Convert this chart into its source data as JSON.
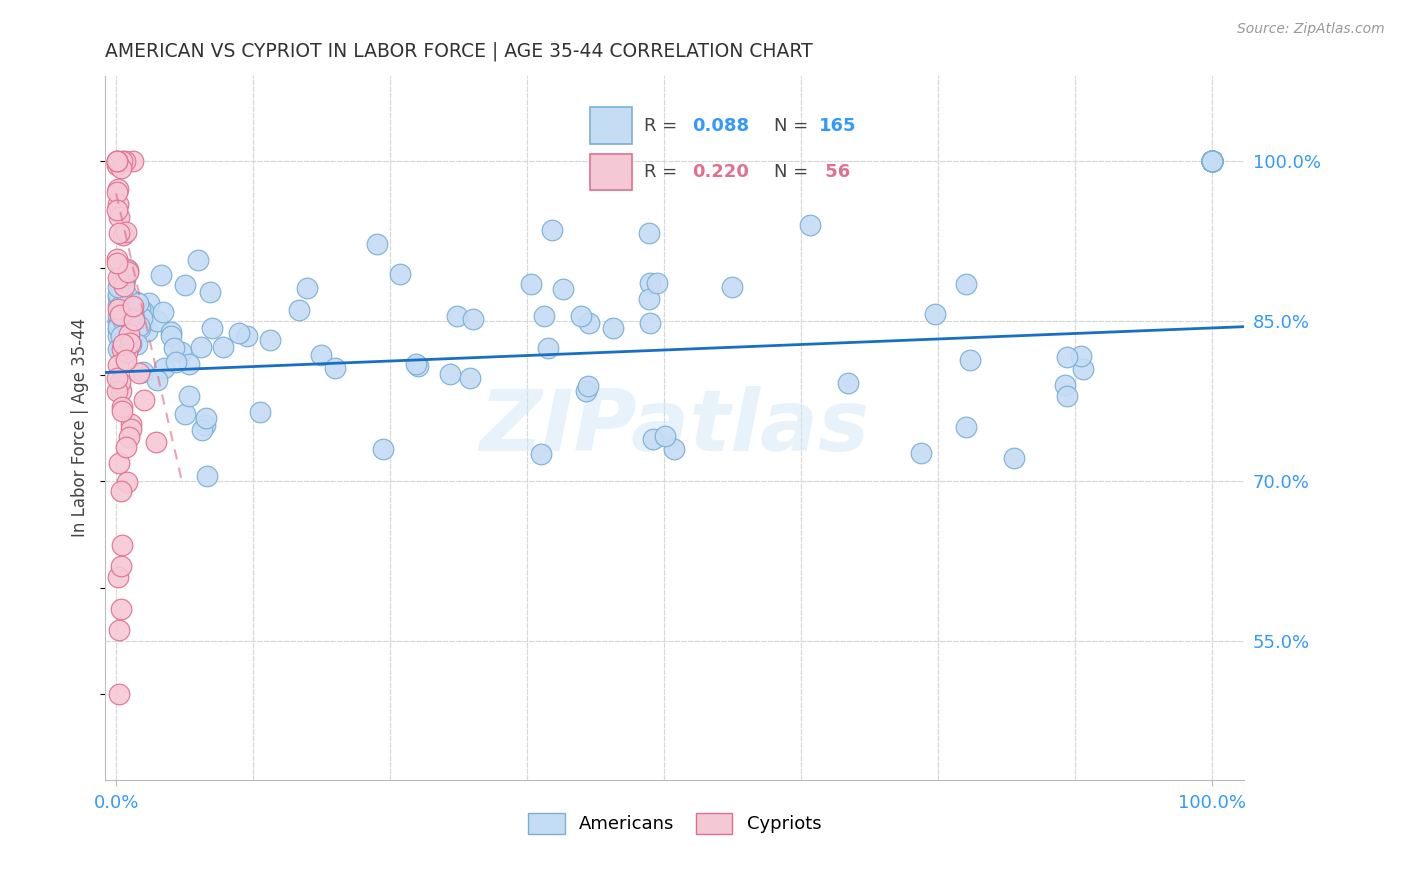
{
  "title": "AMERICAN VS CYPRIOT IN LABOR FORCE | AGE 35-44 CORRELATION CHART",
  "source_text": "Source: ZipAtlas.com",
  "ylabel": "In Labor Force | Age 35-44",
  "american_color": "#c5dcf5",
  "american_edge": "#7aafd4",
  "cypriot_color": "#f5c8d5",
  "cypriot_edge": "#e07090",
  "trend_blue": "#1a6fc4",
  "trend_pink": "#e07090",
  "background": "#ffffff",
  "grid_color": "#d8d8d8",
  "axis_label_color": "#3399ff",
  "title_color": "#333333",
  "watermark": "ZIPatlas",
  "legend_r_blue": "0.088",
  "legend_n_blue": "165",
  "legend_r_pink": "0.220",
  "legend_n_pink": "56",
  "ytick_vals": [
    0.55,
    0.7,
    0.85,
    1.0
  ],
  "ytick_labels": [
    "55.0%",
    "70.0%",
    "85.0%",
    "100.0%"
  ],
  "ymin": 0.42,
  "ymax": 1.08,
  "xmin": -0.01,
  "xmax": 1.03
}
